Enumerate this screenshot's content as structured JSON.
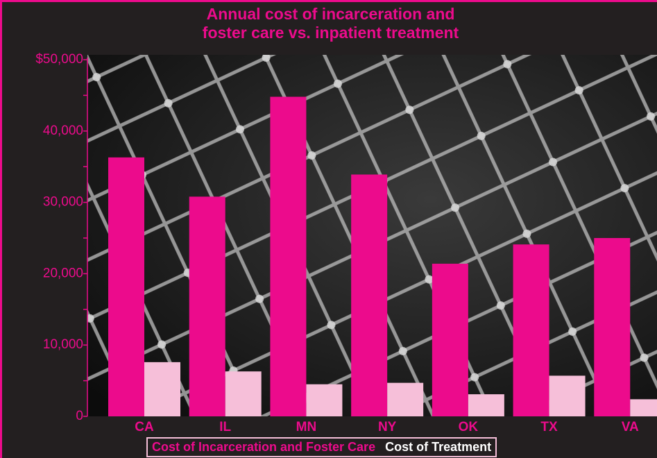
{
  "chart_data": {
    "type": "bar",
    "title": "Annual cost of incarceration and\nfoster care vs. inpatient treatment",
    "categories": [
      "CA",
      "IL",
      "MN",
      "NY",
      "OK",
      "TX",
      "VA"
    ],
    "series": [
      {
        "name": "Cost of Incarceration and Foster Care",
        "color": "#ec0b8c",
        "values": [
          36300,
          30800,
          44800,
          33900,
          21400,
          24100,
          25000
        ]
      },
      {
        "name": "Cost of Treatment",
        "color": "#f6bfd9",
        "values": [
          7600,
          6300,
          4500,
          4700,
          3100,
          5700,
          2400
        ]
      }
    ],
    "ylim": [
      0,
      50000
    ],
    "yticks": [
      {
        "value": 0,
        "label": "0"
      },
      {
        "value": 10000,
        "label": "10,000"
      },
      {
        "value": 20000,
        "label": "20,000"
      },
      {
        "value": 30000,
        "label": "30,000"
      },
      {
        "value": 40000,
        "label": "40,000"
      },
      {
        "value": 50000,
        "label": "$50,000"
      }
    ],
    "yminorticks": [
      5000,
      15000,
      25000,
      35000,
      45000
    ],
    "legend": "bottom"
  }
}
